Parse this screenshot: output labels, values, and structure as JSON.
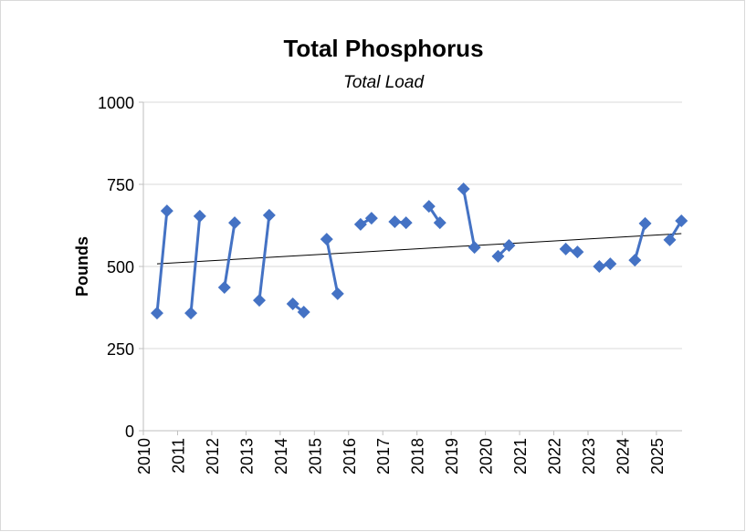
{
  "chart_data": {
    "type": "scatter",
    "title": "Total Phosphorus",
    "subtitle": "Total Load",
    "y_label": "Pounds",
    "series": [
      {
        "name": null,
        "color": "#4472c4",
        "x": [
          2010.4,
          2010.69,
          2011.39,
          2011.65,
          2012.37,
          2012.67,
          2013.39,
          2013.68,
          2014.37,
          2014.69,
          2015.36,
          2015.68,
          2016.35,
          2016.67,
          2017.35,
          2017.68,
          2018.35,
          2018.67,
          2019.36,
          2019.68,
          2020.37,
          2020.69,
          2022.35,
          2022.69,
          2023.33,
          2023.65,
          2024.37,
          2024.67,
          2025.39,
          2025.73
        ],
        "values": [
          358,
          669,
          358,
          653,
          436,
          633,
          397,
          656,
          386,
          361,
          583,
          417,
          628,
          647,
          636,
          633,
          683,
          633,
          736,
          558,
          531,
          564,
          553,
          544,
          500,
          508,
          519,
          631,
          581,
          639
        ]
      }
    ],
    "trendline": {
      "color": "#000000",
      "x": [
        2010.4,
        2025.73
      ],
      "values": [
        508,
        600
      ]
    },
    "xlim": [
      2010,
      2025.75
    ],
    "xticks": [
      2010,
      2011,
      2012,
      2013,
      2014,
      2015,
      2016,
      2017,
      2018,
      2019,
      2020,
      2021,
      2022,
      2023,
      2024,
      2025
    ],
    "ylim": [
      0,
      1000
    ],
    "yticks": [
      0,
      250,
      500,
      750,
      1000
    ],
    "grid": true
  }
}
